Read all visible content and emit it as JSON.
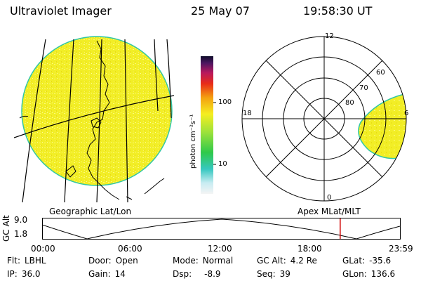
{
  "header": {
    "title": "Ultraviolet Imager",
    "date": "25 May 07",
    "time": "19:58:30 UT"
  },
  "geo_panel": {
    "caption": "Geographic Lat/Lon"
  },
  "polar_panel": {
    "caption": "Apex MLat/MLT",
    "mlt_labels": {
      "top": "12",
      "left": "18",
      "right": "6",
      "bottom": "0"
    },
    "lat_labels": [
      "60",
      "70",
      "80"
    ]
  },
  "colorbar": {
    "unit_label": "photon cm⁻²s⁻¹",
    "ticks": [
      "100",
      "10"
    ]
  },
  "alt_plot": {
    "ylabel": "GC Alt",
    "y_ticks": [
      "9.0",
      "1.8"
    ],
    "x_ticks": [
      "00:00",
      "06:00",
      "12:00",
      "18:00",
      "23:59"
    ],
    "current_time_fraction": 0.833
  },
  "info": {
    "filter": {
      "label": "Flt:",
      "value": "LBHL"
    },
    "ip": {
      "label": "IP:",
      "value": "36.0"
    },
    "door": {
      "label": "Door:",
      "value": "Open"
    },
    "gain": {
      "label": "Gain:",
      "value": "14"
    },
    "mode": {
      "label": "Mode:",
      "value": "Normal"
    },
    "dsp": {
      "label": "Dsp:",
      "value": "-8.9"
    },
    "gc_alt": {
      "label": "GC Alt:",
      "value": "4.2 Re"
    },
    "seq": {
      "label": "Seq:",
      "value": "39"
    },
    "glat": {
      "label": "GLat:",
      "value": "-35.6"
    },
    "glon": {
      "label": "GLon:",
      "value": "136.6"
    }
  },
  "colors": {
    "emission": "#f2ef2a",
    "emission_light": "#fbf66a",
    "limb": "#31c7a4",
    "marker": "#d00000"
  }
}
